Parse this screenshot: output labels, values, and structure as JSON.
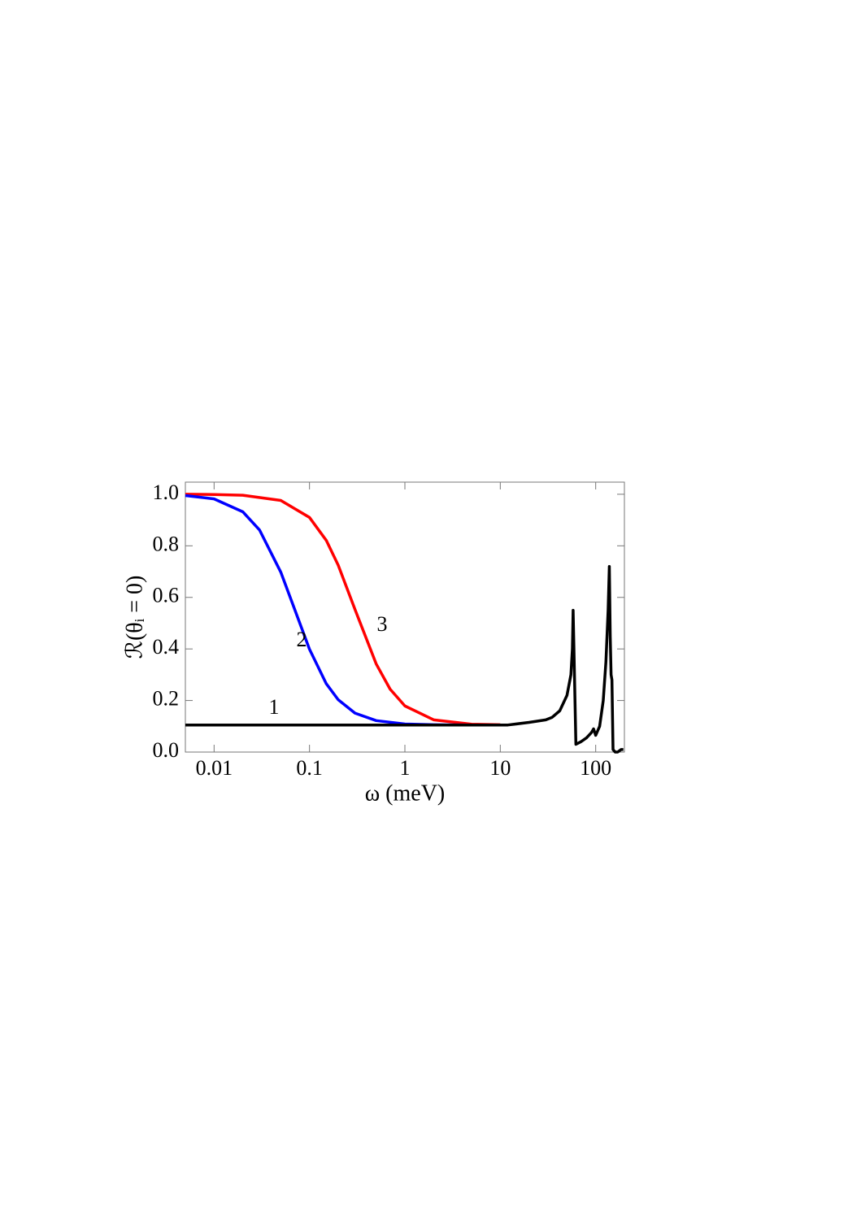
{
  "chart_data": {
    "type": "line",
    "xlabel": "ω (meV)",
    "ylabel": "ℛ(θᵢ = 0)",
    "xscale": "log",
    "xlim": [
      0.005,
      200
    ],
    "ylim": [
      0,
      1.047
    ],
    "xticks": [
      0.01,
      0.1,
      1,
      10,
      100
    ],
    "yticks": [
      {
        "value": 0,
        "label": "0.0"
      },
      0.2,
      0.4,
      0.6,
      0.8,
      {
        "value": 1,
        "label": "1.0"
      }
    ],
    "series": [
      {
        "name": "1",
        "color": "#000000",
        "x": [
          0.005,
          0.1,
          1,
          12,
          20,
          30,
          35,
          42,
          50,
          55,
          57,
          58,
          59,
          62,
          70,
          80,
          90,
          95,
          100,
          110,
          120,
          128,
          135,
          139,
          142,
          145,
          148,
          152,
          160,
          170,
          185,
          195
        ],
        "values": [
          0.105,
          0.105,
          0.105,
          0.105,
          0.115,
          0.125,
          0.135,
          0.16,
          0.22,
          0.3,
          0.4,
          0.55,
          0.42,
          0.03,
          0.04,
          0.055,
          0.075,
          0.09,
          0.065,
          0.1,
          0.2,
          0.35,
          0.55,
          0.72,
          0.45,
          0.3,
          0.28,
          0.01,
          0.0,
          0.0,
          0.01,
          0.01
        ]
      },
      {
        "name": "2",
        "color": "#0000ff",
        "x": [
          0.005,
          0.01,
          0.02,
          0.03,
          0.05,
          0.07,
          0.1,
          0.15,
          0.2,
          0.3,
          0.5,
          1,
          2,
          5,
          10
        ],
        "values": [
          0.995,
          0.982,
          0.932,
          0.861,
          0.698,
          0.553,
          0.399,
          0.265,
          0.203,
          0.151,
          0.122,
          0.109,
          0.106,
          0.105,
          0.105
        ]
      },
      {
        "name": "3",
        "color": "#ff0000",
        "x": [
          0.005,
          0.01,
          0.02,
          0.05,
          0.1,
          0.15,
          0.2,
          0.3,
          0.5,
          0.7,
          1,
          2,
          5,
          10
        ],
        "values": [
          1.0,
          0.999,
          0.996,
          0.976,
          0.91,
          0.821,
          0.725,
          0.553,
          0.342,
          0.244,
          0.179,
          0.125,
          0.108,
          0.106
        ]
      }
    ]
  }
}
